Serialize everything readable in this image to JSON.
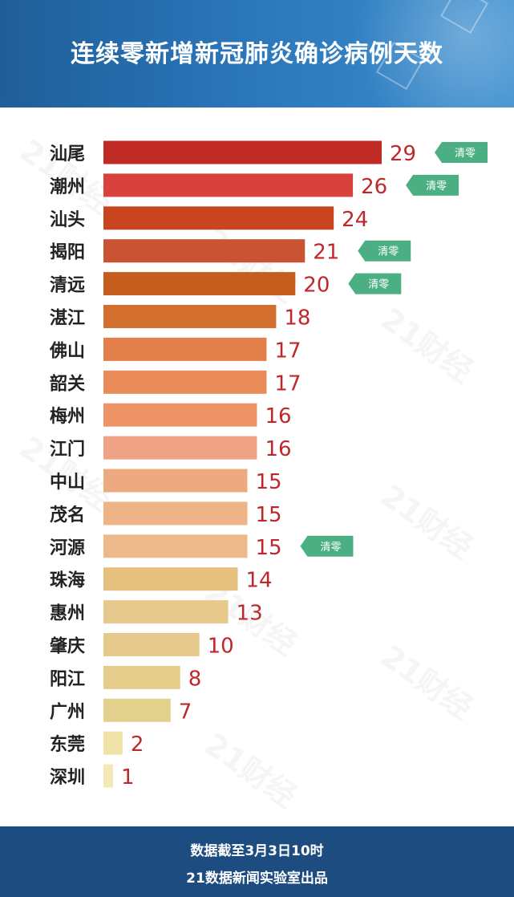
{
  "title": "连续零新增新冠肺炎确诊病例天数",
  "footer": {
    "line1": "数据截至3月3日10时",
    "line2": "21数据新闻实验室出品"
  },
  "watermark": "21财经",
  "badge_label": "清零",
  "colors": {
    "header": "#2a75b8",
    "footer": "#1d4c80",
    "value_text": "#c0272d",
    "badge": "#4caf84"
  },
  "chart_data": {
    "type": "bar",
    "orientation": "horizontal",
    "title": "连续零新增新冠肺炎确诊病例天数",
    "categories": [
      "汕尾",
      "潮州",
      "汕头",
      "揭阳",
      "清远",
      "湛江",
      "佛山",
      "韶关",
      "梅州",
      "江门",
      "中山",
      "茂名",
      "河源",
      "珠海",
      "惠州",
      "肇庆",
      "阳江",
      "广州",
      "东莞",
      "深圳"
    ],
    "values": [
      29,
      26,
      24,
      21,
      20,
      18,
      17,
      17,
      16,
      16,
      15,
      15,
      15,
      14,
      13,
      10,
      8,
      7,
      2,
      1
    ],
    "badges": [
      true,
      true,
      false,
      true,
      true,
      false,
      false,
      false,
      false,
      false,
      false,
      false,
      true,
      false,
      false,
      false,
      false,
      false,
      false,
      false
    ],
    "bar_colors": [
      "#c02b26",
      "#d9423c",
      "#c8451f",
      "#c95433",
      "#c65d1d",
      "#d4702f",
      "#e27f4a",
      "#e98c5a",
      "#ee9366",
      "#f0a287",
      "#edaa80",
      "#eeb386",
      "#ecb98a",
      "#e5c07f",
      "#e8c98d",
      "#e7c98c",
      "#e6cc8a",
      "#e2d08d",
      "#f1e3a7",
      "#f4e8b6"
    ],
    "xlim": [
      0,
      29
    ]
  }
}
